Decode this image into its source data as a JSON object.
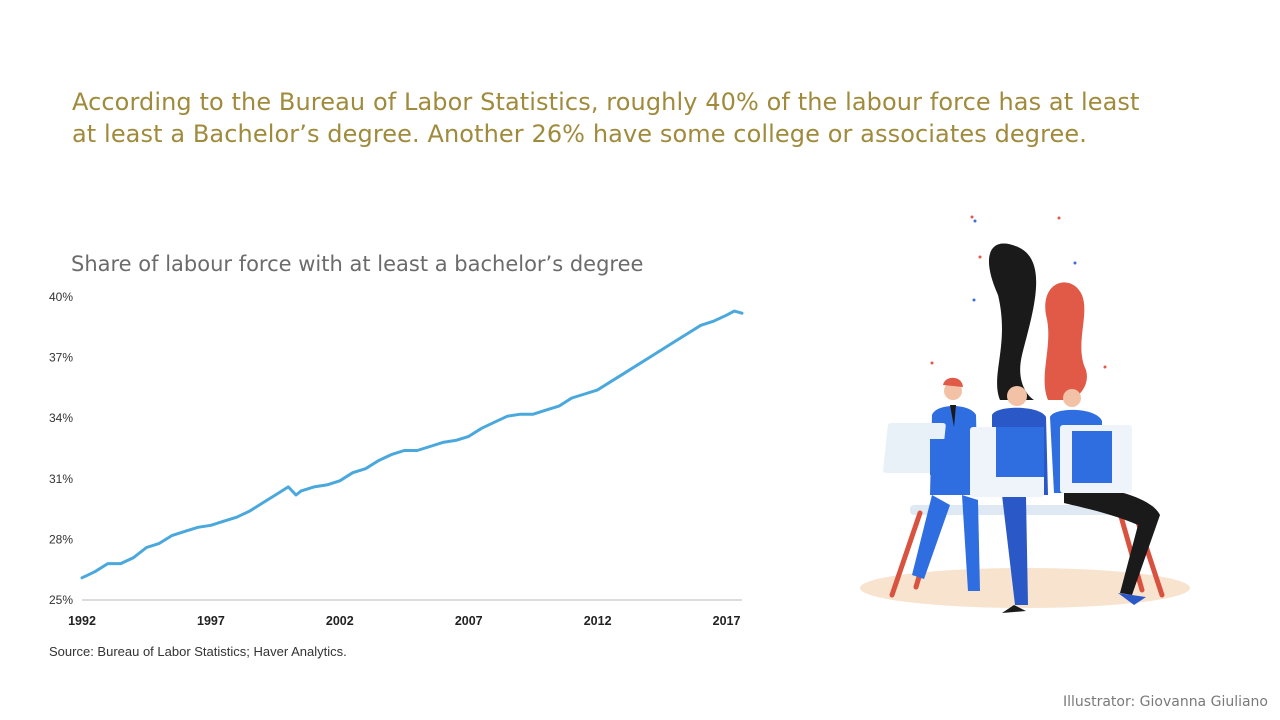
{
  "headline": {
    "line1": "According to the Bureau of Labor Statistics, roughly 40% of the labour force has at least",
    "line2": "at least a Bachelor’s degree. Another 26% have some college or associates degree."
  },
  "chart_data": {
    "type": "line",
    "title": "Share of labour force with at least a bachelor’s degree",
    "xlabel": "",
    "ylabel": "",
    "xlim": [
      1992,
      2017.6
    ],
    "ylim": [
      25,
      40
    ],
    "x_ticks": [
      1992,
      1997,
      2002,
      2007,
      2012,
      2017
    ],
    "y_ticks": [
      25,
      28,
      31,
      34,
      37,
      40
    ],
    "y_tick_labels": [
      "25%",
      "28%",
      "31%",
      "34%",
      "37%",
      "40%"
    ],
    "grid": false,
    "color": "#4aa8dc",
    "series": [
      {
        "x": [
          1992.0,
          1992.5,
          1993.0,
          1993.5,
          1994.0,
          1994.5,
          1995.0,
          1995.5,
          1996.0,
          1996.5,
          1997.0,
          1997.5,
          1998.0,
          1998.5,
          1999.0,
          1999.5,
          2000.0,
          2000.3,
          2000.5,
          2001.0,
          2001.5,
          2002.0,
          2002.5,
          2003.0,
          2003.5,
          2004.0,
          2004.5,
          2005.0,
          2005.5,
          2006.0,
          2006.5,
          2007.0,
          2007.5,
          2008.0,
          2008.5,
          2009.0,
          2009.5,
          2010.0,
          2010.5,
          2011.0,
          2011.5,
          2012.0,
          2012.5,
          2013.0,
          2013.5,
          2014.0,
          2014.5,
          2015.0,
          2015.5,
          2016.0,
          2016.5,
          2017.0,
          2017.3,
          2017.6
        ],
        "values": [
          26.1,
          26.4,
          26.8,
          26.8,
          27.1,
          27.6,
          27.8,
          28.2,
          28.4,
          28.6,
          28.7,
          28.9,
          29.1,
          29.4,
          29.8,
          30.2,
          30.6,
          30.2,
          30.4,
          30.6,
          30.7,
          30.9,
          31.3,
          31.5,
          31.9,
          32.2,
          32.4,
          32.4,
          32.6,
          32.8,
          32.9,
          33.1,
          33.5,
          33.8,
          34.1,
          34.2,
          34.2,
          34.4,
          34.6,
          35.0,
          35.2,
          35.4,
          35.8,
          36.2,
          36.6,
          37.0,
          37.4,
          37.8,
          38.2,
          38.6,
          38.8,
          39.1,
          39.3,
          39.2
        ]
      }
    ]
  },
  "source": "Source: Bureau of Labor Statistics; Haver Analytics.",
  "credit": "Illustrator: Giovanna Giuliano"
}
